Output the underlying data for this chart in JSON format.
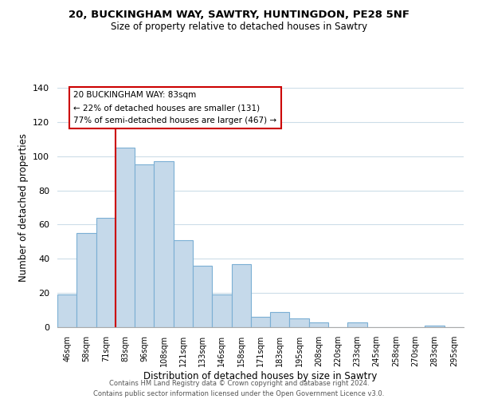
{
  "title": "20, BUCKINGHAM WAY, SAWTRY, HUNTINGDON, PE28 5NF",
  "subtitle": "Size of property relative to detached houses in Sawtry",
  "xlabel": "Distribution of detached houses by size in Sawtry",
  "ylabel": "Number of detached properties",
  "bar_labels": [
    "46sqm",
    "58sqm",
    "71sqm",
    "83sqm",
    "96sqm",
    "108sqm",
    "121sqm",
    "133sqm",
    "146sqm",
    "158sqm",
    "171sqm",
    "183sqm",
    "195sqm",
    "208sqm",
    "220sqm",
    "233sqm",
    "245sqm",
    "258sqm",
    "270sqm",
    "283sqm",
    "295sqm"
  ],
  "bar_values": [
    19,
    55,
    64,
    105,
    95,
    97,
    51,
    36,
    19,
    37,
    6,
    9,
    5,
    3,
    0,
    3,
    0,
    0,
    0,
    1,
    0
  ],
  "bar_color": "#c5d9ea",
  "bar_edge_color": "#7bafd4",
  "vline_index": 3,
  "vline_color": "#cc0000",
  "annotation_lines": [
    "20 BUCKINGHAM WAY: 83sqm",
    "← 22% of detached houses are smaller (131)",
    "77% of semi-detached houses are larger (467) →"
  ],
  "ylim": [
    0,
    140
  ],
  "yticks": [
    0,
    20,
    40,
    60,
    80,
    100,
    120,
    140
  ],
  "footer_lines": [
    "Contains HM Land Registry data © Crown copyright and database right 2024.",
    "Contains public sector information licensed under the Open Government Licence v3.0."
  ],
  "background_color": "#ffffff",
  "grid_color": "#ccdde8"
}
